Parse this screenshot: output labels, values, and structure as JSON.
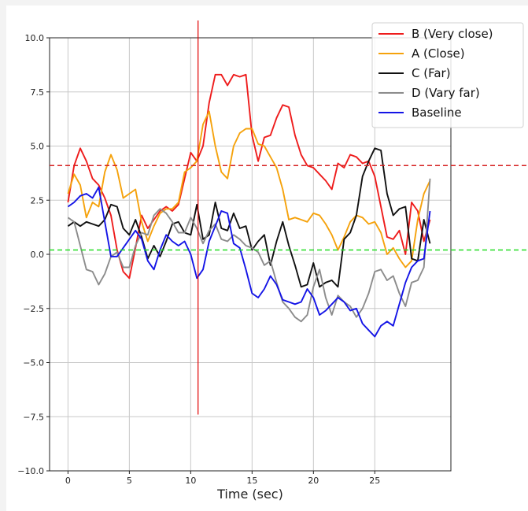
{
  "chart_data": {
    "type": "line",
    "xlabel": "Time (sec)",
    "ylabel": "",
    "title": "",
    "xlim": [
      -1.5,
      31.2
    ],
    "ylim": [
      -10,
      10
    ],
    "xticks": [
      0,
      5,
      10,
      15,
      20,
      25
    ],
    "xtick_labels": [
      "0",
      "5",
      "10",
      "15",
      "20",
      "25"
    ],
    "yticks": [
      10,
      7.5,
      5,
      2.5,
      0,
      -2.5,
      -5,
      -7.5,
      -10
    ],
    "ytick_labels": [
      "10.0",
      "7.5",
      "5.0",
      "2.5",
      "0.0",
      "−2.5",
      "−5.0",
      "−7.5",
      "−10.0"
    ],
    "grid": true,
    "legend_position": "top-right",
    "reference_lines": {
      "vertical": {
        "x": 10.6,
        "y_from": -7.4,
        "y_to": 10.8,
        "color": "#e00000"
      },
      "horizontal": [
        {
          "y": 4.1,
          "color": "#d62020",
          "style": "dashed"
        },
        {
          "y": 0.2,
          "color": "#22dd22",
          "style": "dashed"
        }
      ]
    },
    "series": [
      {
        "name": "B (Very close)",
        "color": "#ee1c1c",
        "x": [
          0,
          0.5,
          1,
          1.5,
          2,
          2.5,
          3,
          3.5,
          4,
          4.5,
          5,
          5.5,
          6,
          6.5,
          7,
          7.5,
          8,
          8.5,
          9,
          9.5,
          10,
          10.5,
          11,
          11.5,
          12,
          12.5,
          13,
          13.5,
          14,
          14.5,
          15,
          15.5,
          16,
          16.5,
          17,
          17.5,
          18,
          18.5,
          19,
          19.5,
          20,
          20.5,
          21,
          21.5,
          22,
          22.5,
          23,
          23.5,
          24,
          24.5,
          25,
          25.5,
          26,
          26.5,
          27,
          27.5,
          28,
          28.5,
          29,
          29.5
        ],
        "values": [
          2.4,
          4.1,
          4.9,
          4.3,
          3.5,
          3.2,
          2.6,
          1.8,
          0.2,
          -0.8,
          -1.1,
          0.3,
          1.8,
          1.2,
          1.6,
          2.0,
          2.2,
          2.0,
          2.3,
          3.5,
          4.7,
          4.3,
          5.0,
          7.0,
          8.3,
          8.3,
          7.8,
          8.3,
          8.2,
          8.3,
          5.5,
          4.3,
          5.4,
          5.5,
          6.3,
          6.9,
          6.8,
          5.5,
          4.6,
          4.1,
          4.0,
          3.7,
          3.4,
          3.0,
          4.2,
          4.0,
          4.6,
          4.5,
          4.2,
          4.3,
          3.6,
          2.2,
          0.8,
          0.7,
          1.1,
          0.0,
          2.4,
          2.0,
          0.6,
          1.6
        ]
      },
      {
        "name": "A (Close)",
        "color": "#f5a20c",
        "x": [
          0,
          0.5,
          1,
          1.5,
          2,
          2.5,
          3,
          3.5,
          4,
          4.5,
          5,
          5.5,
          6,
          6.5,
          7,
          7.5,
          8,
          8.5,
          9,
          9.5,
          10,
          10.5,
          11,
          11.5,
          12,
          12.5,
          13,
          13.5,
          14,
          14.5,
          15,
          15.5,
          16,
          16.5,
          17,
          17.5,
          18,
          18.5,
          19,
          19.5,
          20,
          20.5,
          21,
          21.5,
          22,
          22.5,
          23,
          23.5,
          24,
          24.5,
          25,
          25.5,
          26,
          26.5,
          27,
          27.5,
          28,
          28.5,
          29,
          29.5
        ],
        "values": [
          2.8,
          3.7,
          3.2,
          1.7,
          2.4,
          2.2,
          3.8,
          4.6,
          3.9,
          2.6,
          2.8,
          3.0,
          1.5,
          0.6,
          1.3,
          1.9,
          2.1,
          2.1,
          2.4,
          3.8,
          4.0,
          4.3,
          6.0,
          6.6,
          5.0,
          3.8,
          3.5,
          5.0,
          5.6,
          5.8,
          5.8,
          5.1,
          5.0,
          4.5,
          4.0,
          3.0,
          1.6,
          1.7,
          1.6,
          1.5,
          1.9,
          1.8,
          1.4,
          0.9,
          0.2,
          0.8,
          1.5,
          1.8,
          1.7,
          1.4,
          1.5,
          1.0,
          0.0,
          0.3,
          -0.2,
          -0.6,
          -0.3,
          1.6,
          2.8,
          3.4
        ]
      },
      {
        "name": "C (Far)",
        "color": "#111111",
        "x": [
          0,
          0.5,
          1,
          1.5,
          2,
          2.5,
          3,
          3.5,
          4,
          4.5,
          5,
          5.5,
          6,
          6.5,
          7,
          7.5,
          8,
          8.5,
          9,
          9.5,
          10,
          10.5,
          11,
          11.5,
          12,
          12.5,
          13,
          13.5,
          14,
          14.5,
          15,
          15.5,
          16,
          16.5,
          17,
          17.5,
          18,
          18.5,
          19,
          19.5,
          20,
          20.5,
          21,
          21.5,
          22,
          22.5,
          23,
          23.5,
          24,
          24.5,
          25,
          25.5,
          26,
          26.5,
          27,
          27.5,
          28,
          28.5,
          29,
          29.5
        ],
        "values": [
          1.3,
          1.5,
          1.3,
          1.5,
          1.4,
          1.3,
          1.6,
          2.3,
          2.2,
          1.2,
          0.9,
          1.6,
          0.8,
          -0.2,
          0.4,
          -0.1,
          0.6,
          1.4,
          1.5,
          1.0,
          0.9,
          2.3,
          0.7,
          0.9,
          2.4,
          1.2,
          1.1,
          1.9,
          1.2,
          1.3,
          0.2,
          0.6,
          0.9,
          -0.5,
          0.6,
          1.5,
          0.4,
          -0.5,
          -1.5,
          -1.4,
          -0.4,
          -1.5,
          -1.3,
          -1.2,
          -1.5,
          0.7,
          1.0,
          1.8,
          3.6,
          4.3,
          4.9,
          4.8,
          2.8,
          1.8,
          2.1,
          2.2,
          -0.2,
          -0.3,
          1.6,
          0.5
        ]
      },
      {
        "name": "D (Vary far)",
        "color": "#8c8c8c",
        "x": [
          0,
          0.5,
          1,
          1.5,
          2,
          2.5,
          3,
          3.5,
          4,
          4.5,
          5,
          5.5,
          6,
          6.5,
          7,
          7.5,
          8,
          8.5,
          9,
          9.5,
          10,
          10.5,
          11,
          11.5,
          12,
          12.5,
          13,
          13.5,
          14,
          14.5,
          15,
          15.5,
          16,
          16.5,
          17,
          17.5,
          18,
          18.5,
          19,
          19.5,
          20,
          20.5,
          21,
          21.5,
          22,
          22.5,
          23,
          23.5,
          24,
          24.5,
          25,
          25.5,
          26,
          26.5,
          27,
          27.5,
          28,
          28.5,
          29,
          29.5
        ],
        "values": [
          1.7,
          1.5,
          0.4,
          -0.7,
          -0.8,
          -1.4,
          -0.9,
          -0.1,
          0.1,
          -0.6,
          -0.6,
          0.4,
          1.0,
          0.9,
          1.8,
          2.1,
          1.9,
          1.5,
          1.0,
          1.0,
          1.7,
          1.2,
          0.5,
          1.1,
          1.4,
          0.7,
          0.6,
          0.9,
          0.7,
          0.4,
          0.3,
          0.1,
          -0.5,
          -0.3,
          -1.3,
          -2.2,
          -2.5,
          -2.9,
          -3.1,
          -2.8,
          -1.5,
          -0.7,
          -2.0,
          -2.8,
          -1.9,
          -2.2,
          -2.4,
          -2.9,
          -2.5,
          -1.8,
          -0.8,
          -0.7,
          -1.2,
          -1.0,
          -1.8,
          -2.4,
          -1.3,
          -1.2,
          -0.6,
          3.5
        ]
      },
      {
        "name": "Baseline",
        "color": "#1414e6",
        "x": [
          0,
          0.5,
          1,
          1.5,
          2,
          2.5,
          3,
          3.5,
          4,
          4.5,
          5,
          5.5,
          6,
          6.5,
          7,
          7.5,
          8,
          8.5,
          9,
          9.5,
          10,
          10.5,
          11,
          11.5,
          12,
          12.5,
          13,
          13.5,
          14,
          14.5,
          15,
          15.5,
          16,
          16.5,
          17,
          17.5,
          18,
          18.5,
          19,
          19.5,
          20,
          20.5,
          21,
          21.5,
          22,
          22.5,
          23,
          23.5,
          24,
          24.5,
          25,
          25.5,
          26,
          26.5,
          27,
          27.5,
          28,
          28.5,
          29,
          29.5
        ],
        "values": [
          2.2,
          2.4,
          2.7,
          2.8,
          2.6,
          3.1,
          1.5,
          -0.1,
          -0.1,
          0.3,
          0.7,
          1.1,
          0.7,
          -0.3,
          -0.7,
          0.2,
          0.9,
          0.6,
          0.4,
          0.6,
          0.0,
          -1.1,
          -0.7,
          0.6,
          1.3,
          2.0,
          1.9,
          0.5,
          0.3,
          -0.7,
          -1.8,
          -2.0,
          -1.6,
          -1.0,
          -1.4,
          -2.1,
          -2.2,
          -2.3,
          -2.2,
          -1.6,
          -2.0,
          -2.8,
          -2.6,
          -2.3,
          -2.0,
          -2.2,
          -2.6,
          -2.5,
          -3.2,
          -3.5,
          -3.8,
          -3.3,
          -3.1,
          -3.3,
          -2.3,
          -1.3,
          -0.6,
          -0.3,
          -0.2,
          2.0
        ]
      }
    ]
  }
}
